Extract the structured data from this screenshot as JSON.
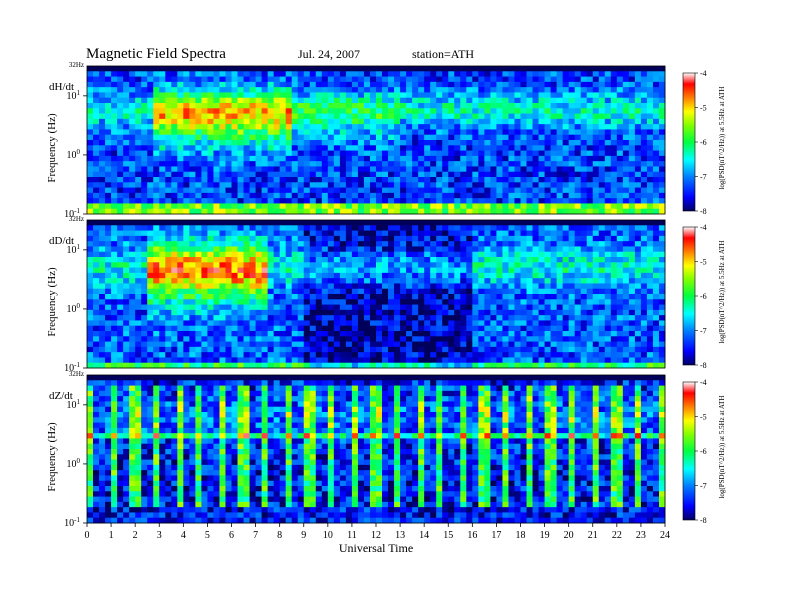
{
  "header": {
    "title": "Magnetic Field Spectra",
    "date": "Jul. 24, 2007",
    "station": "station=ATH"
  },
  "chart_data": [
    {
      "type": "heatmap",
      "panel_label": "dH/dt",
      "ylabel": "Frequency (Hz)",
      "ylabel_top": "32Hz",
      "yticks": [
        {
          "v": -1,
          "label": "10-1"
        },
        {
          "v": 0,
          "label": "100"
        },
        {
          "v": 1,
          "label": "101"
        }
      ],
      "ylim": [
        -1,
        1.505
      ],
      "yscale": "log",
      "xlim": [
        0,
        24
      ],
      "colorbar": {
        "label": "log(PSD(nT^2/Hz)) at 5.5Hz at ATH",
        "ticks": [
          "-4",
          "-5",
          "-6",
          "-7",
          "-8"
        ],
        "range": [
          -8,
          -4
        ]
      }
    },
    {
      "type": "heatmap",
      "panel_label": "dD/dt",
      "ylabel": "Frequency (Hz)",
      "ylabel_top": "32Hz",
      "yticks": [
        {
          "v": -1,
          "label": "10-1"
        },
        {
          "v": 0,
          "label": "100"
        },
        {
          "v": 1,
          "label": "101"
        }
      ],
      "ylim": [
        -1,
        1.505
      ],
      "yscale": "log",
      "xlim": [
        0,
        24
      ],
      "colorbar": {
        "label": "log(PSD(nT^2/Hz)) at 5.5Hz at ATH",
        "ticks": [
          "-4",
          "-5",
          "-6",
          "-7",
          "-8"
        ],
        "range": [
          -8,
          -4
        ]
      }
    },
    {
      "type": "heatmap",
      "panel_label": "dZ/dt",
      "ylabel": "Frequency (Hz)",
      "ylabel_top": "32Hz",
      "yticks": [
        {
          "v": -1,
          "label": "10-1"
        },
        {
          "v": 0,
          "label": "100"
        },
        {
          "v": 1,
          "label": "101"
        }
      ],
      "ylim": [
        -1,
        1.505
      ],
      "yscale": "log",
      "xlim": [
        0,
        24
      ],
      "xticks": [
        0,
        1,
        2,
        3,
        4,
        5,
        6,
        7,
        8,
        9,
        10,
        11,
        12,
        13,
        14,
        15,
        16,
        17,
        18,
        19,
        20,
        21,
        22,
        23,
        24
      ],
      "xlabel": "Universal Time",
      "colorbar": {
        "label": "log(PSD(nT^2/Hz)) at 5.5Hz at ATH",
        "ticks": [
          "-4",
          "-5",
          "-6",
          "-7",
          "-8"
        ],
        "range": [
          -8,
          -4
        ]
      }
    }
  ],
  "colormap": [
    "#000080",
    "#0000ff",
    "#0080ff",
    "#00ffff",
    "#00ff80",
    "#00ff00",
    "#80ff00",
    "#ffff00",
    "#ff8000",
    "#ff0000",
    "#c00000",
    "#ffffff"
  ]
}
